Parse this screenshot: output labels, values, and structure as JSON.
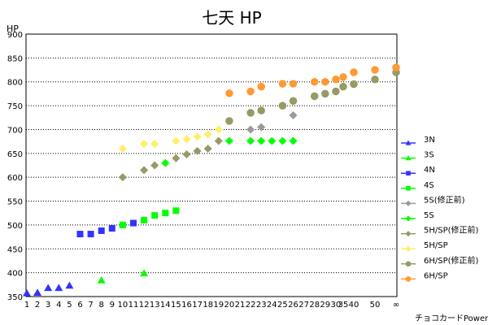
{
  "chart_data": {
    "type": "scatter",
    "title": "七天 HP",
    "ylabel": "HP",
    "xlabel": "チョコカードPower",
    "ylim": [
      350,
      900
    ],
    "yticks": [
      350,
      400,
      450,
      500,
      550,
      600,
      650,
      700,
      750,
      800,
      850,
      900
    ],
    "x_categories": [
      "1",
      "2",
      "3",
      "4",
      "5",
      "6",
      "7",
      "8",
      "9",
      "10",
      "11",
      "12",
      "13",
      "14",
      "15",
      "16",
      "17",
      "18",
      "19",
      "20",
      "21",
      "22",
      "23",
      "24",
      "25",
      "26",
      "27",
      "28",
      "29",
      "30",
      "35",
      "40",
      "50",
      "∞"
    ],
    "grid": "horizontal-dotted",
    "legend_position": "right",
    "series": [
      {
        "name": "3N",
        "color": "#3333ff",
        "marker": "triangle",
        "points": [
          [
            "1",
            357
          ],
          [
            "2",
            358
          ],
          [
            "3",
            368
          ],
          [
            "4",
            368
          ],
          [
            "5",
            373
          ]
        ]
      },
      {
        "name": "3S",
        "color": "#00ff00",
        "marker": "triangle",
        "points": [
          [
            "8",
            384
          ],
          [
            "12",
            399
          ]
        ]
      },
      {
        "name": "4N",
        "color": "#3333ff",
        "marker": "square",
        "points": [
          [
            "6",
            481
          ],
          [
            "7",
            481
          ],
          [
            "8",
            488
          ],
          [
            "9",
            493
          ],
          [
            "11",
            504
          ]
        ]
      },
      {
        "name": "4S",
        "color": "#00ff00",
        "marker": "square",
        "points": [
          [
            "10",
            500
          ],
          [
            "12",
            510
          ],
          [
            "13",
            520
          ],
          [
            "14",
            525
          ],
          [
            "15",
            530
          ]
        ]
      },
      {
        "name": "5S(修正前)",
        "color": "#999999",
        "marker": "diamond",
        "points": [
          [
            "22",
            700
          ],
          [
            "23",
            705
          ],
          [
            "26",
            730
          ]
        ]
      },
      {
        "name": "5S",
        "color": "#00ff00",
        "marker": "diamond",
        "points": [
          [
            "14",
            630
          ],
          [
            "20",
            676
          ],
          [
            "22",
            676
          ],
          [
            "23",
            676
          ],
          [
            "24",
            676
          ],
          [
            "25",
            676
          ],
          [
            "26",
            676
          ]
        ]
      },
      {
        "name": "5H/SP(修正前)",
        "color": "#999966",
        "marker": "diamond",
        "points": [
          [
            "10",
            600
          ],
          [
            "12",
            615
          ],
          [
            "13",
            625
          ],
          [
            "15",
            640
          ],
          [
            "16",
            648
          ],
          [
            "17",
            655
          ],
          [
            "18",
            660
          ],
          [
            "19",
            676
          ]
        ]
      },
      {
        "name": "5H/SP",
        "color": "#ffee66",
        "marker": "diamond",
        "points": [
          [
            "10",
            660
          ],
          [
            "12",
            670
          ],
          [
            "13",
            670
          ],
          [
            "15",
            676
          ],
          [
            "16",
            680
          ],
          [
            "17",
            685
          ],
          [
            "18",
            690
          ],
          [
            "19",
            700
          ]
        ]
      },
      {
        "name": "6H/SP(修正前)",
        "color": "#999966",
        "marker": "circle",
        "points": [
          [
            "20",
            718
          ],
          [
            "22",
            735
          ],
          [
            "23",
            740
          ],
          [
            "25",
            750
          ],
          [
            "26",
            760
          ],
          [
            "28",
            770
          ],
          [
            "29",
            775
          ],
          [
            "30",
            780
          ],
          [
            "35",
            790
          ],
          [
            "40",
            795
          ],
          [
            "50",
            805
          ],
          [
            "∞",
            820
          ]
        ]
      },
      {
        "name": "6H/SP",
        "color": "#ff9933",
        "marker": "circle",
        "points": [
          [
            "20",
            776
          ],
          [
            "22",
            780
          ],
          [
            "23",
            790
          ],
          [
            "25",
            796
          ],
          [
            "26",
            796
          ],
          [
            "28",
            800
          ],
          [
            "29",
            800
          ],
          [
            "30",
            805
          ],
          [
            "35",
            810
          ],
          [
            "40",
            820
          ],
          [
            "50",
            825
          ],
          [
            "∞",
            830
          ]
        ]
      }
    ]
  }
}
